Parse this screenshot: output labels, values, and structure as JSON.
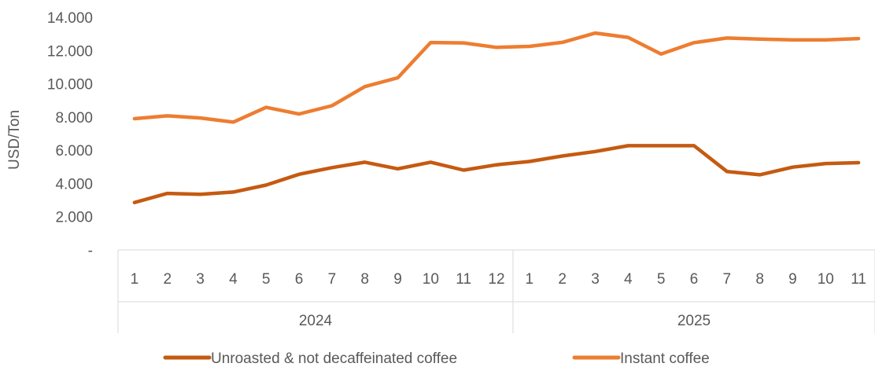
{
  "chart_data": {
    "type": "line",
    "ylabel": "USD/Ton",
    "ylim": [
      0,
      14000
    ],
    "y_ticks": [
      0,
      2000,
      4000,
      6000,
      8000,
      10000,
      12000,
      14000
    ],
    "y_tick_labels": [
      "-",
      "2.000",
      "4.000",
      "6.000",
      "8.000",
      "10.000",
      "12.000",
      "14.000"
    ],
    "groups": [
      {
        "label": "2024",
        "months": [
          "1",
          "2",
          "3",
          "4",
          "5",
          "6",
          "7",
          "8",
          "9",
          "10",
          "11",
          "12"
        ]
      },
      {
        "label": "2025",
        "months": [
          "1",
          "2",
          "3",
          "4",
          "5",
          "6",
          "7",
          "8",
          "9",
          "10",
          "11"
        ]
      }
    ],
    "grid": false,
    "legend_position": "bottom",
    "series": [
      {
        "name": "Unroasted & not decaffeinated coffee",
        "color": "#c55a11",
        "values": [
          2850,
          3400,
          3350,
          3480,
          3900,
          4550,
          4950,
          5280,
          4880,
          5280,
          4800,
          5120,
          5320,
          5650,
          5920,
          6270,
          6270,
          6270,
          4720,
          4520,
          4980,
          5200,
          5250
        ]
      },
      {
        "name": "Instant coffee",
        "color": "#ed7d31",
        "values": [
          7900,
          8070,
          7940,
          7690,
          8580,
          8180,
          8680,
          9830,
          10360,
          12480,
          12460,
          12190,
          12250,
          12490,
          13050,
          12790,
          11790,
          12470,
          12750,
          12690,
          12640,
          12640,
          12720
        ]
      }
    ]
  }
}
